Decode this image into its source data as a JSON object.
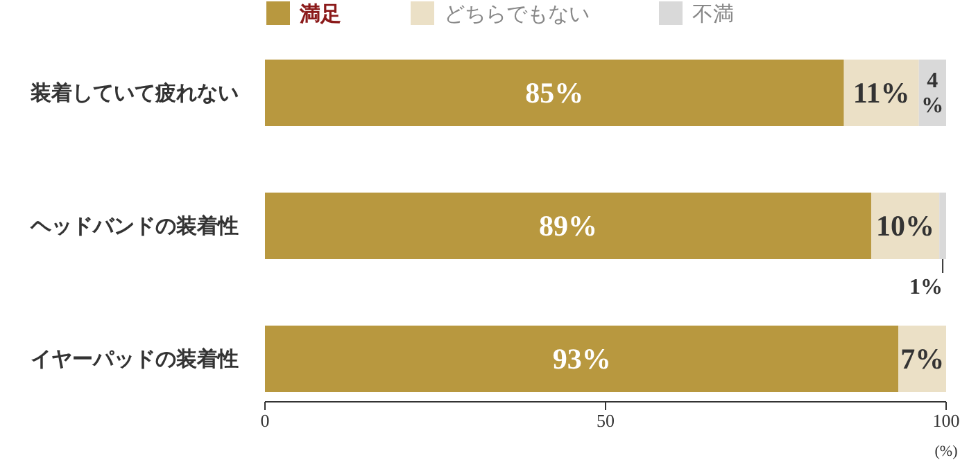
{
  "chart_data": {
    "type": "bar",
    "orientation": "horizontal",
    "stacked": true,
    "categories": [
      "装着していて疲れない",
      "ヘッドバンドの装着性",
      "イヤーパッドの装着性"
    ],
    "series": [
      {
        "name": "満足",
        "color": "#b8983f",
        "values": [
          85,
          89,
          93
        ],
        "value_labels": [
          "85%",
          "89%",
          "93%"
        ]
      },
      {
        "name": "どちらでもない",
        "color": "#ebe0c6",
        "values": [
          11,
          10,
          7
        ],
        "value_labels": [
          "11%",
          "10%",
          "7%"
        ]
      },
      {
        "name": "不満",
        "color": "#d9d9d9",
        "values": [
          4,
          1,
          null
        ],
        "value_labels": [
          "4%",
          "1%",
          null
        ]
      }
    ],
    "xlim": [
      0,
      100
    ],
    "xticks": [
      0,
      50,
      100
    ],
    "xlabel": "(%)",
    "legend": "top left"
  }
}
